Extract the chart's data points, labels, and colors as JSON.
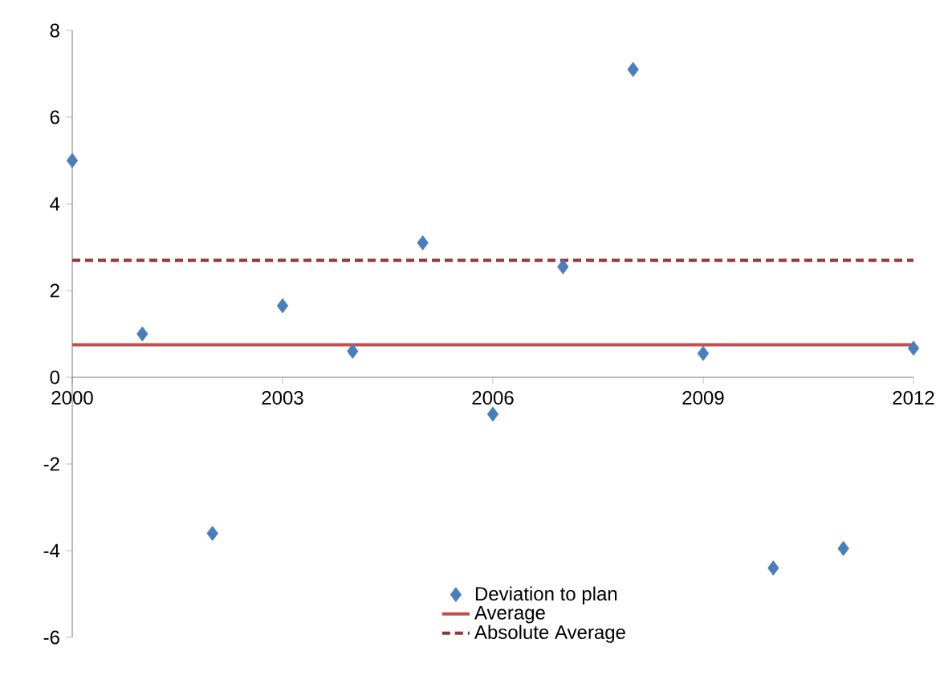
{
  "chart_data": {
    "type": "scatter",
    "xlim": [
      2000,
      2012
    ],
    "ylim": [
      -6,
      8
    ],
    "xticks": [
      2000,
      2003,
      2006,
      2009,
      2012
    ],
    "yticks": [
      -6,
      -4,
      -2,
      0,
      2,
      4,
      6,
      8
    ],
    "grid": false,
    "legend": "bottom",
    "series": [
      {
        "name": "Deviation to plan",
        "marker": "diamond",
        "color": "#4a7ebb",
        "x": [
          2000,
          2001,
          2002,
          2003,
          2004,
          2005,
          2006,
          2007,
          2008,
          2009,
          2010,
          2011,
          2012
        ],
        "values": [
          5.0,
          1.0,
          -3.6,
          1.65,
          0.6,
          3.1,
          -0.85,
          2.55,
          7.1,
          0.55,
          -4.4,
          -3.95,
          0.67
        ]
      },
      {
        "name": "Average",
        "type": "line",
        "marker": "none",
        "line_style": "solid",
        "color": "#c0504d",
        "x": [
          2000,
          2012
        ],
        "values": [
          0.75,
          0.75
        ]
      },
      {
        "name": "Absolute Average",
        "type": "line",
        "marker": "none",
        "line_style": "dashed",
        "color": "#953735",
        "x": [
          2000,
          2012
        ],
        "values": [
          2.7,
          2.7
        ]
      }
    ]
  }
}
